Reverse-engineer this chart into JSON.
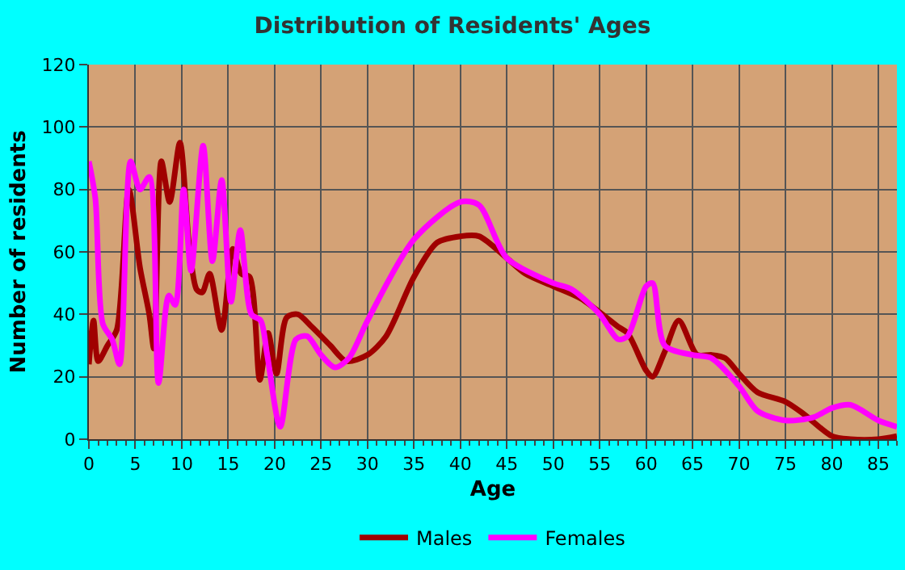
{
  "chart_data": {
    "type": "line",
    "title": "Distribution of Residents' Ages",
    "xlabel": "Age",
    "ylabel": "Number of residents",
    "xlim": [
      0,
      87
    ],
    "xticks": [
      0,
      5,
      10,
      15,
      20,
      25,
      30,
      35,
      40,
      45,
      50,
      55,
      60,
      65,
      70,
      75,
      80,
      85
    ],
    "ylim": [
      0,
      120
    ],
    "yticks": [
      0,
      20,
      40,
      60,
      80,
      100,
      120
    ],
    "grid": true,
    "legend": "bottom",
    "marker": "none",
    "line_style": "solid",
    "series": [
      {
        "name": "Males",
        "color": "#a00000",
        "x": [
          0,
          0.5,
          1,
          2,
          3,
          4.3,
          5.5,
          6.5,
          7,
          7.8,
          8.7,
          9.8,
          10.8,
          11.6,
          12.2,
          13,
          14.3,
          15.5,
          16.4,
          17.3,
          18.4,
          19.3,
          20.2,
          21.3,
          22.5,
          24,
          26,
          27.7,
          30,
          32,
          35,
          37.5,
          40,
          42,
          45,
          47,
          50,
          53,
          57,
          58,
          60,
          60.7,
          62,
          63.5,
          65.5,
          67,
          68.5,
          70,
          72,
          75,
          77,
          80,
          82,
          85,
          87
        ],
        "values": [
          24,
          38,
          25,
          30,
          35,
          80,
          55,
          40,
          29,
          89,
          76,
          95,
          62,
          48,
          47,
          53,
          35,
          61,
          53,
          52,
          19,
          34,
          21,
          39,
          40,
          36,
          30,
          25,
          27,
          33,
          52,
          63,
          65,
          65,
          58,
          53,
          49,
          45,
          36,
          34,
          22,
          20,
          28,
          38,
          27,
          27,
          26,
          21,
          15,
          12,
          8,
          1,
          0,
          0,
          1
        ]
      },
      {
        "name": "Females",
        "color": "#ff00ff",
        "x": [
          0,
          0.7,
          1.5,
          2.5,
          3.3,
          4.5,
          5.5,
          6.5,
          7.5,
          8.6,
          9.3,
          10.2,
          11,
          12.3,
          13.3,
          14.3,
          15.3,
          16.3,
          17.5,
          18.5,
          19.2,
          20.6,
          22.3,
          23.5,
          25,
          26.5,
          28,
          30,
          35,
          40,
          42,
          45,
          50,
          52,
          55,
          57,
          58,
          60,
          60.7,
          62,
          65,
          67,
          70,
          72,
          75,
          78,
          80,
          82,
          85,
          87
        ],
        "values": [
          89,
          77,
          37,
          32,
          24,
          89,
          80,
          84,
          18,
          46,
          43,
          80,
          54,
          94,
          57,
          83,
          44,
          67,
          40,
          38,
          27,
          4,
          32,
          33,
          27,
          23,
          26,
          38,
          64,
          76,
          75,
          58,
          50,
          48,
          40,
          32,
          33,
          49,
          50,
          30,
          27,
          26,
          17,
          9,
          6,
          7,
          10,
          11,
          6,
          4
        ]
      }
    ]
  }
}
